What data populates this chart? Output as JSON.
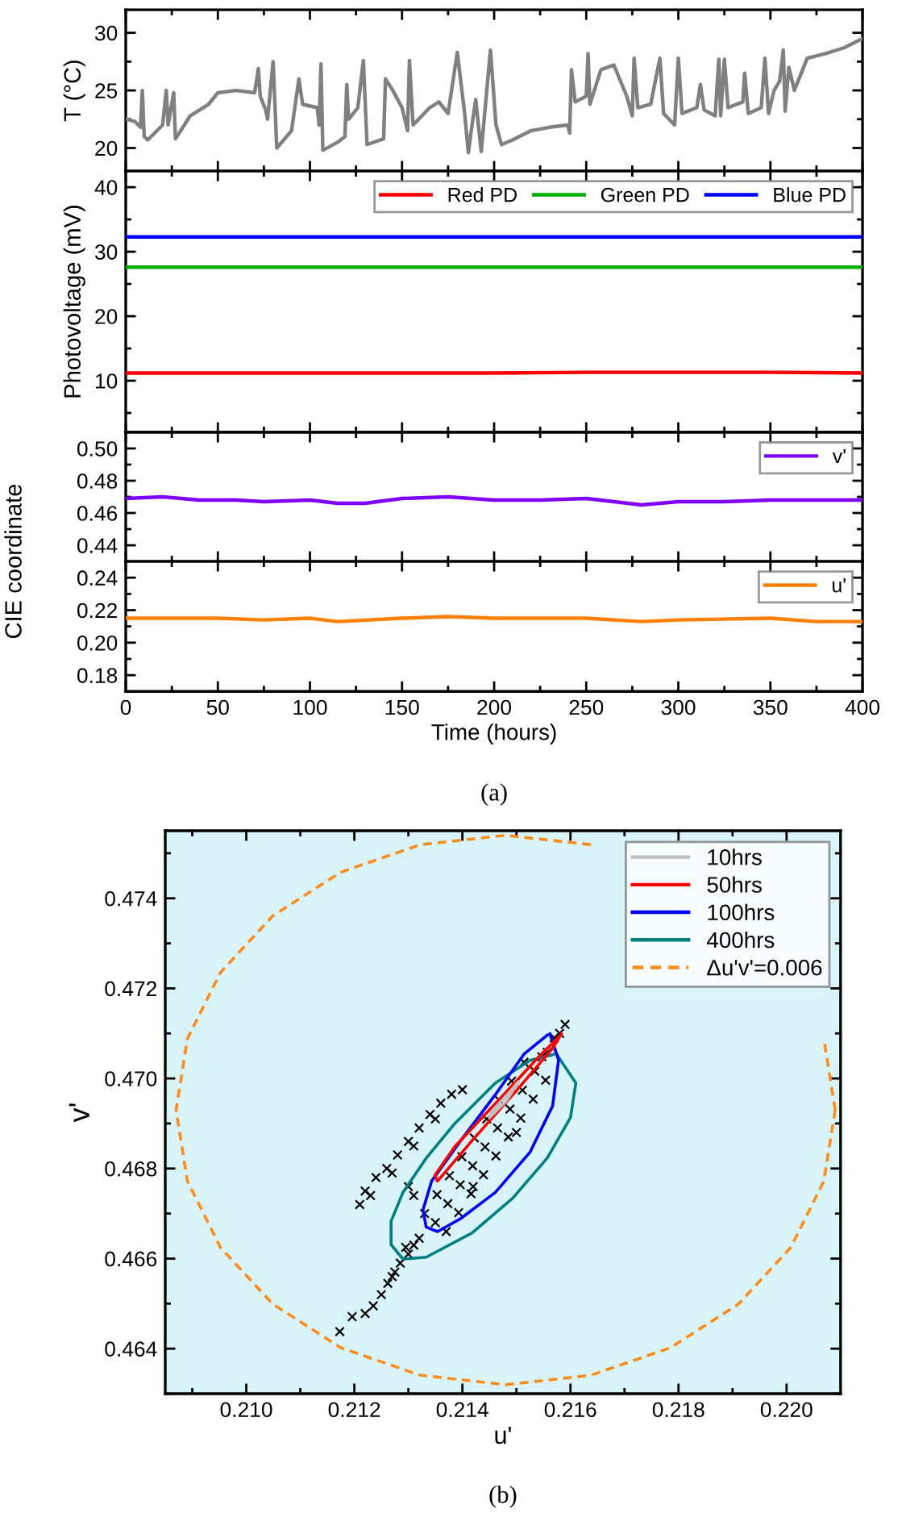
{
  "chart_data": [
    {
      "type": "line",
      "ylabel": "T (°C)",
      "xlim": [
        0,
        400
      ],
      "ylim": [
        18,
        32
      ],
      "tick_labels": "y",
      "xticks": [
        0,
        {
          "value": 25,
          "label": null
        },
        50,
        {
          "value": 75,
          "label": null
        },
        100,
        {
          "value": 125,
          "label": null
        },
        150,
        {
          "value": 175,
          "label": null
        },
        200,
        {
          "value": 225,
          "label": null
        },
        250,
        {
          "value": 275,
          "label": null
        },
        300,
        {
          "value": 325,
          "label": null
        },
        350,
        {
          "value": 375,
          "label": null
        },
        400
      ],
      "yticks": [
        20,
        {
          "value": 22.5,
          "label": null
        },
        25,
        {
          "value": 27.5,
          "label": null
        },
        30
      ],
      "series": [
        {
          "color": "#808080",
          "x": [
            0,
            5,
            8,
            9,
            10,
            12,
            20,
            22,
            23,
            26,
            27,
            35,
            45,
            50,
            60,
            70,
            72,
            73,
            76,
            77,
            80,
            82,
            90,
            94,
            96,
            104,
            105,
            106,
            107,
            115,
            119,
            120,
            121,
            126,
            129,
            131,
            140,
            141,
            145,
            150,
            153,
            154,
            156,
            165,
            170,
            175,
            180,
            184,
            186,
            188,
            190,
            193,
            198,
            201,
            204,
            210,
            220,
            230,
            240,
            241,
            242,
            244,
            250,
            251,
            252,
            258,
            265,
            272,
            275,
            276,
            278,
            285,
            290,
            292,
            298,
            300,
            302,
            310,
            312,
            314,
            320,
            322,
            323,
            325,
            327,
            335,
            336,
            338,
            345,
            347,
            349,
            352,
            355,
            357,
            358,
            360,
            363,
            370,
            380,
            390,
            400
          ],
          "values": [
            22.5,
            22.3,
            21.8,
            25.0,
            21.0,
            20.7,
            22.0,
            25.0,
            22.0,
            24.8,
            20.8,
            22.8,
            23.8,
            24.8,
            25.0,
            24.8,
            26.9,
            24.5,
            23.3,
            22.5,
            27.5,
            20.0,
            21.5,
            26.0,
            23.8,
            23.5,
            22.0,
            27.3,
            19.8,
            20.5,
            21.0,
            25.5,
            22.5,
            23.5,
            27.6,
            20.3,
            20.8,
            26.0,
            25.0,
            23.5,
            21.5,
            27.6,
            22.0,
            23.5,
            24.0,
            23.0,
            28.3,
            23.0,
            19.6,
            22.0,
            24.2,
            19.7,
            28.5,
            22.0,
            20.3,
            20.7,
            21.5,
            21.8,
            22.0,
            21.3,
            26.8,
            24.0,
            24.5,
            28.2,
            23.8,
            26.8,
            27.2,
            24.5,
            22.8,
            27.8,
            23.5,
            23.8,
            27.8,
            23.0,
            22.0,
            27.8,
            23.0,
            23.5,
            25.5,
            23.3,
            22.8,
            27.7,
            22.8,
            27.7,
            23.5,
            24.0,
            26.5,
            23.0,
            23.5,
            27.8,
            23.0,
            25.0,
            25.8,
            28.5,
            23.2,
            27.0,
            25.0,
            27.8,
            28.2,
            28.7,
            29.5
          ]
        }
      ]
    },
    {
      "type": "line",
      "ylabel": "Photovoltage (mV)",
      "xlim": [
        0,
        400
      ],
      "ylim": [
        2,
        42.5
      ],
      "tick_labels": "y",
      "legend": "top right",
      "x": [
        0,
        50,
        100,
        150,
        200,
        250,
        300,
        350,
        400
      ],
      "xticks": [
        0,
        {
          "value": 25,
          "label": null
        },
        50,
        {
          "value": 75,
          "label": null
        },
        100,
        {
          "value": 125,
          "label": null
        },
        150,
        {
          "value": 175,
          "label": null
        },
        200,
        {
          "value": 225,
          "label": null
        },
        250,
        {
          "value": 275,
          "label": null
        },
        300,
        {
          "value": 325,
          "label": null
        },
        350,
        {
          "value": 375,
          "label": null
        },
        400
      ],
      "yticks": [
        {
          "value": 5,
          "label": null
        },
        10,
        {
          "value": 15,
          "label": null
        },
        20,
        {
          "value": 25,
          "label": null
        },
        30,
        {
          "value": 35,
          "label": null
        },
        40
      ],
      "series": [
        {
          "name": "Red PD",
          "color": "#ff0000",
          "values": [
            11.2,
            11.2,
            11.2,
            11.2,
            11.2,
            11.3,
            11.3,
            11.3,
            11.2
          ]
        },
        {
          "name": "Green PD",
          "color": "#00b000",
          "values": [
            27.6,
            27.6,
            27.6,
            27.6,
            27.6,
            27.6,
            27.6,
            27.6,
            27.6
          ]
        },
        {
          "name": "Blue PD",
          "color": "#0000ff",
          "values": [
            32.3,
            32.3,
            32.3,
            32.3,
            32.3,
            32.3,
            32.3,
            32.3,
            32.3
          ]
        }
      ]
    },
    {
      "type": "line",
      "xlim": [
        0,
        400
      ],
      "ylim": [
        0.43,
        0.51
      ],
      "tick_labels": "y",
      "legend": "top right",
      "x": [
        0,
        20,
        40,
        60,
        75,
        100,
        115,
        130,
        150,
        175,
        200,
        225,
        250,
        265,
        280,
        300,
        325,
        350,
        375,
        400
      ],
      "xticks": [
        0,
        {
          "value": 25,
          "label": null
        },
        50,
        {
          "value": 75,
          "label": null
        },
        100,
        {
          "value": 125,
          "label": null
        },
        150,
        {
          "value": 175,
          "label": null
        },
        200,
        {
          "value": 225,
          "label": null
        },
        250,
        {
          "value": 275,
          "label": null
        },
        300,
        {
          "value": 325,
          "label": null
        },
        350,
        {
          "value": 375,
          "label": null
        },
        400
      ],
      "yticks": [
        0.44,
        {
          "value": 0.45,
          "label": null
        },
        0.46,
        {
          "value": 0.47,
          "label": null
        },
        0.48,
        {
          "value": 0.49,
          "label": null
        },
        {
          "value": 0.5,
          "label": "0.50"
        }
      ],
      "series": [
        {
          "name": "v'",
          "color": "#8000ff",
          "values": [
            0.469,
            0.47,
            0.468,
            0.468,
            0.467,
            0.468,
            0.466,
            0.466,
            0.469,
            0.47,
            0.468,
            0.468,
            0.469,
            0.467,
            0.465,
            0.467,
            0.467,
            0.468,
            0.468,
            0.468
          ]
        }
      ]
    },
    {
      "type": "line",
      "xlabel": "Time (hours)",
      "ylabel": "CIE coordinate",
      "xlim": [
        0,
        400
      ],
      "ylim": [
        0.17,
        0.25
      ],
      "legend": "top right",
      "annotations": [
        "(a)"
      ],
      "x": [
        0,
        50,
        75,
        100,
        115,
        150,
        175,
        200,
        250,
        280,
        300,
        350,
        375,
        400
      ],
      "xticks": [
        0,
        {
          "value": 25,
          "label": null
        },
        50,
        {
          "value": 75,
          "label": null
        },
        100,
        {
          "value": 125,
          "label": null
        },
        150,
        {
          "value": 175,
          "label": null
        },
        200,
        {
          "value": 225,
          "label": null
        },
        250,
        {
          "value": 275,
          "label": null
        },
        300,
        {
          "value": 325,
          "label": null
        },
        350,
        {
          "value": 375,
          "label": null
        },
        400
      ],
      "yticks": [
        0.18,
        {
          "value": 0.19,
          "label": null
        },
        {
          "value": 0.2,
          "label": "0.20"
        },
        {
          "value": 0.21,
          "label": null
        },
        0.22,
        {
          "value": 0.23,
          "label": null
        },
        0.24
      ],
      "series": [
        {
          "name": "u'",
          "color": "#ff7f00",
          "values": [
            0.215,
            0.215,
            0.214,
            0.215,
            0.213,
            0.215,
            0.216,
            0.215,
            0.215,
            0.213,
            0.214,
            0.215,
            0.213,
            0.213
          ]
        }
      ]
    },
    {
      "type": "line",
      "xlabel": "u'",
      "ylabel": "v'",
      "xlim": [
        0.2085,
        0.221
      ],
      "ylim": [
        0.463,
        0.4755
      ],
      "legend": "top right",
      "annotations": [
        "(b)"
      ],
      "xticks": [
        {
          "value": 0.209,
          "label": null
        },
        {
          "value": 0.21,
          "label": "0.210"
        },
        {
          "value": 0.211,
          "label": null
        },
        0.212,
        {
          "value": 0.213,
          "label": null
        },
        0.214,
        {
          "value": 0.215,
          "label": null
        },
        0.216,
        {
          "value": 0.217,
          "label": null
        },
        0.218,
        {
          "value": 0.219,
          "label": null
        },
        {
          "value": 0.22,
          "label": "0.220"
        }
      ],
      "yticks": [
        {
          "value": 0.463,
          "label": null
        },
        0.464,
        {
          "value": 0.465,
          "label": null
        },
        0.466,
        {
          "value": 0.467,
          "label": null
        },
        0.468,
        {
          "value": 0.469,
          "label": null
        },
        {
          "value": 0.47,
          "label": "0.470"
        },
        {
          "value": 0.471,
          "label": null
        },
        0.472,
        {
          "value": 0.473,
          "label": null
        },
        0.474,
        {
          "value": 0.475,
          "label": null
        }
      ],
      "series": [
        {
          "type": "scatter",
          "marker": "cross",
          "color": "#000000",
          "x": [
            0.21173,
            0.21196,
            0.2122,
            0.21235,
            0.2125,
            0.21262,
            0.21275,
            0.21285,
            0.213,
            0.2131,
            0.2132,
            0.21295,
            0.2127,
            0.2135,
            0.2133,
            0.2137,
            0.21373,
            0.21353,
            0.21393,
            0.21396,
            0.21376,
            0.21416,
            0.21419,
            0.21399,
            0.21439,
            0.21442,
            0.21422,
            0.21462,
            0.21465,
            0.21445,
            0.21485,
            0.21488,
            0.21468,
            0.21508,
            0.21511,
            0.21491,
            0.21531,
            0.21534,
            0.21514,
            0.21554,
            0.21557,
            0.21547,
            0.2158,
            0.2159,
            0.2157,
            0.215,
            0.2142,
            0.2121,
            0.2122,
            0.2124,
            0.2126,
            0.2128,
            0.213,
            0.2132,
            0.2134,
            0.2136,
            0.2138,
            0.214,
            0.2123,
            0.2127,
            0.2131,
            0.2135,
            0.213,
            0.2131
          ],
          "values": [
            0.46438,
            0.46471,
            0.46478,
            0.46495,
            0.4652,
            0.46545,
            0.4657,
            0.4659,
            0.4661,
            0.4663,
            0.46645,
            0.46625,
            0.4656,
            0.4668,
            0.467,
            0.4666,
            0.46722,
            0.46742,
            0.46702,
            0.46764,
            0.46784,
            0.46744,
            0.46806,
            0.46826,
            0.46786,
            0.46848,
            0.46868,
            0.46828,
            0.4689,
            0.4691,
            0.4687,
            0.46932,
            0.46952,
            0.46912,
            0.46974,
            0.46994,
            0.46954,
            0.47016,
            0.47036,
            0.46996,
            0.47058,
            0.47048,
            0.471,
            0.4712,
            0.4709,
            0.4688,
            0.4676,
            0.4672,
            0.4675,
            0.4678,
            0.468,
            0.4683,
            0.4686,
            0.4689,
            0.4692,
            0.46945,
            0.46965,
            0.46975,
            0.4674,
            0.4679,
            0.4685,
            0.4691,
            0.4676,
            0.4674
          ]
        },
        {
          "name": "10hrs",
          "color": "#c0c0c0",
          "x": [
            0.21503,
            0.21482,
            0.2145,
            0.21455,
            0.21493,
            0.215
          ],
          "values": [
            0.46992,
            0.46951,
            0.46913,
            0.46928,
            0.46977,
            0.46988
          ]
        },
        {
          "name": "50hrs",
          "color": "#ff0000",
          "x": [
            0.21583,
            0.21567,
            0.21503,
            0.21418,
            0.21354,
            0.21349,
            0.21386,
            0.21472,
            0.21546,
            0.2158
          ],
          "values": [
            0.47099,
            0.47067,
            0.46977,
            0.46862,
            0.46772,
            0.46785,
            0.46849,
            0.46958,
            0.47054,
            0.47094
          ]
        },
        {
          "name": "100hrs",
          "color": "#0000ff",
          "x": [
            0.21562,
            0.21578,
            0.21567,
            0.21525,
            0.21461,
            0.21397,
            0.21354,
            0.21333,
            0.21327,
            0.21343,
            0.21397,
            0.21461,
            0.21514,
            0.21557
          ],
          "values": [
            0.47099,
            0.47041,
            0.46939,
            0.46836,
            0.46747,
            0.46689,
            0.4666,
            0.4667,
            0.46708,
            0.46772,
            0.46862,
            0.46964,
            0.47054,
            0.47096
          ]
        },
        {
          "name": "400hrs",
          "color": "#008080",
          "x": [
            0.21573,
            0.2161,
            0.216,
            0.21557,
            0.21493,
            0.21418,
            0.21333,
            0.2129,
            0.21268,
            0.21268,
            0.2129,
            0.21333,
            0.21386,
            0.21461,
            0.21525,
            0.21568
          ],
          "values": [
            0.47056,
            0.4699,
            0.46913,
            0.46823,
            0.46734,
            0.46657,
            0.46603,
            0.46599,
            0.46631,
            0.46683,
            0.46747,
            0.46823,
            0.469,
            0.4699,
            0.4704,
            0.47053
          ]
        },
        {
          "name": "Δu'v'=0.006",
          "color": "#ff8c1a",
          "line_style": "dashed",
          "x": [
            0.2209,
            0.22069,
            0.22008,
            0.21911,
            0.21785,
            0.21638,
            0.2148,
            0.21322,
            0.21175,
            0.21049,
            0.20952,
            0.20891,
            0.2087,
            0.20891,
            0.20952,
            0.21049,
            0.21175,
            0.21322,
            0.2148,
            0.21638,
            0.21785,
            0.21911,
            0.22008,
            0.22069,
            0.2209
          ],
          "values": [
            0.4693,
            0.47088,
            null,
            null,
            null,
            0.47519,
            0.4754,
            0.47519,
            0.47458,
            0.47361,
            0.47235,
            0.47088,
            0.4693,
            0.46772,
            0.46625,
            0.46499,
            0.46402,
            0.46341,
            0.4632,
            0.46341,
            0.46402,
            0.46499,
            0.46625,
            0.46772,
            0.4693
          ]
        }
      ]
    }
  ]
}
